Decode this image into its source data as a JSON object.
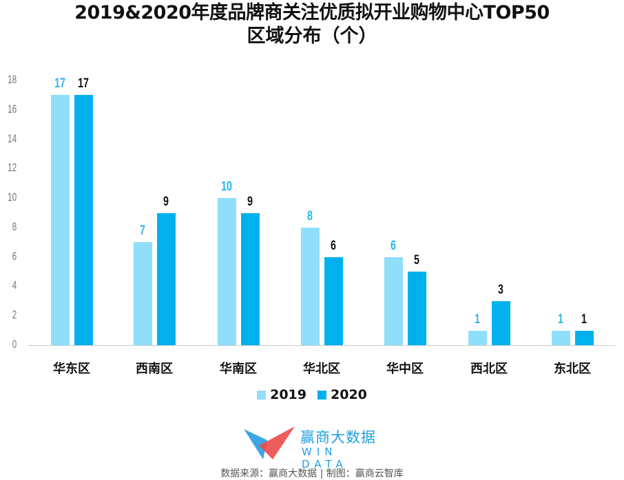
{
  "title": {
    "line1": "2019&2020年度品牌商关注优质拟开业购物中心TOP50",
    "line2": "区域分布（个）"
  },
  "legend": {
    "items": [
      {
        "label": "2019",
        "color": "#8fdffa"
      },
      {
        "label": "2020",
        "color": "#00b1ee"
      }
    ]
  },
  "logo": {
    "brand": "赢商大数据",
    "sub": "WIN DATA"
  },
  "source": "数据来源：赢商大数据 | 制图：赢商云智库",
  "chart_data": {
    "type": "bar",
    "title": "2019&2020年度品牌商关注优质拟开业购物中心TOP50 区域分布（个）",
    "xlabel": "",
    "ylabel": "",
    "categories": [
      "华东区",
      "西南区",
      "华南区",
      "华北区",
      "华中区",
      "西北区",
      "东北区"
    ],
    "series": [
      {
        "name": "2019",
        "color": "#8fdffa",
        "label_color": "#27b6ec",
        "values": [
          17,
          7,
          10,
          8,
          6,
          1,
          1
        ]
      },
      {
        "name": "2020",
        "color": "#00b1ee",
        "label_color": "#111111",
        "values": [
          17,
          9,
          9,
          6,
          5,
          3,
          1
        ]
      }
    ],
    "ylim": [
      0,
      18
    ],
    "yticks": [
      0,
      2,
      4,
      6,
      8,
      10,
      12,
      14,
      16,
      18
    ],
    "grid": false,
    "legend_position": "bottom"
  }
}
